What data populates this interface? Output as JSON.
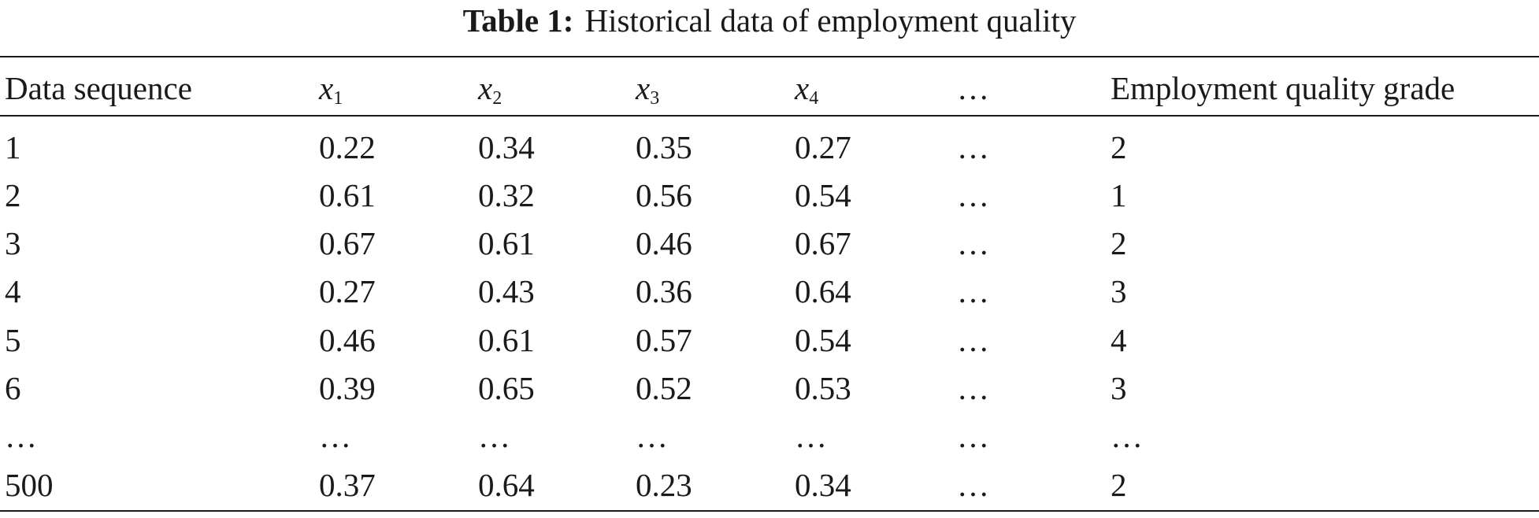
{
  "table": {
    "label": "Table 1:",
    "title": "Historical data of employment quality",
    "header": [
      {
        "text": "Data sequence"
      },
      {
        "base": "x",
        "sub": "1"
      },
      {
        "base": "x",
        "sub": "2"
      },
      {
        "base": "x",
        "sub": "3"
      },
      {
        "base": "x",
        "sub": "4"
      },
      {
        "text": "…"
      },
      {
        "text": "Employment quality grade"
      }
    ],
    "rows": [
      [
        "1",
        "0.22",
        "0.34",
        "0.35",
        "0.27",
        "…",
        "2"
      ],
      [
        "2",
        "0.61",
        "0.32",
        "0.56",
        "0.54",
        "…",
        "1"
      ],
      [
        "3",
        "0.67",
        "0.61",
        "0.46",
        "0.67",
        "…",
        "2"
      ],
      [
        "4",
        "0.27",
        "0.43",
        "0.36",
        "0.64",
        "…",
        "3"
      ],
      [
        "5",
        "0.46",
        "0.61",
        "0.57",
        "0.54",
        "…",
        "4"
      ],
      [
        "6",
        "0.39",
        "0.65",
        "0.52",
        "0.53",
        "…",
        "3"
      ],
      [
        "…",
        "…",
        "…",
        "…",
        "…",
        "…",
        "…"
      ],
      [
        "500",
        "0.37",
        "0.64",
        "0.23",
        "0.34",
        "…",
        "2"
      ]
    ]
  }
}
